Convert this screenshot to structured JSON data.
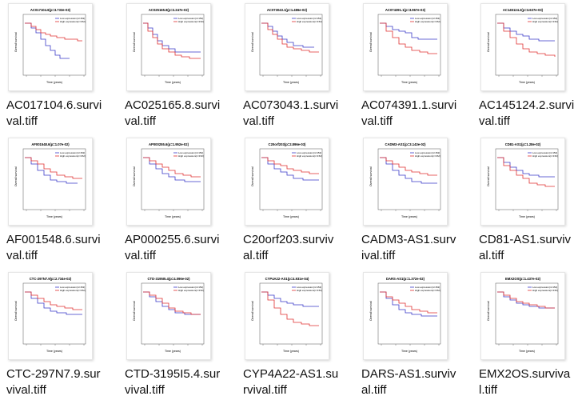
{
  "window": {
    "title": ""
  },
  "legend": {
    "low_label": "Low expression(n=152)",
    "high_label": "High expression(n=152)",
    "low_color": "#3a3ac8",
    "high_color": "#e03030"
  },
  "axes": {
    "xlabel": "Time (years)",
    "ylabel": "Overall survival"
  },
  "files": [
    {
      "name": "AC017104.6.survival.tiff",
      "plot_title": "AC017104.6(p=3.733e-03)"
    },
    {
      "name": "AC025165.8.survival.tiff",
      "plot_title": "AC025165.8(p=2.247e-02)"
    },
    {
      "name": "AC073043.1.survival.tiff",
      "plot_title": "AC073043.1(p=1.486e-02)"
    },
    {
      "name": "AC074391.1.survival.tiff",
      "plot_title": "AC074391.1(p=3.967e-03)"
    },
    {
      "name": "AC145124.2.survival.tiff",
      "plot_title": "AC145124.2(p=3.637e-03)"
    },
    {
      "name": "AF001548.6.survival.tiff",
      "plot_title": "AF001548.6(p=1.07e-02)"
    },
    {
      "name": "AP000255.6.survival.tiff",
      "plot_title": "AP000255.6(p=1.952e-02)"
    },
    {
      "name": "C20orf203.survival.tiff",
      "plot_title": "C20orf203(p=2.896e-03)"
    },
    {
      "name": "CADM3-AS1.survival.tiff",
      "plot_title": "CADM3-AS1(p=3.143e-02)"
    },
    {
      "name": "CD81-AS1.survival.tiff",
      "plot_title": "CD81-AS1(p=1.28e-02)"
    },
    {
      "name": "CTC-297N7.9.survival.tiff",
      "plot_title": "CTC-297N7.9(p=2.734e-02)"
    },
    {
      "name": "CTD-3195I5.4.survival.tiff",
      "plot_title": "CTD-3195I5.4(p=4.096e-02)"
    },
    {
      "name": "CYP4A22-AS1.survival.tiff",
      "plot_title": "CYP4A22-AS1(p=4.931e-04)"
    },
    {
      "name": "DARS-AS1.survival.tiff",
      "plot_title": "DARS-AS1(p=1.372e-02)"
    },
    {
      "name": "EMX2OS.survival.tiff",
      "plot_title": "EMX2OS(p=1.437e-02)"
    }
  ]
}
